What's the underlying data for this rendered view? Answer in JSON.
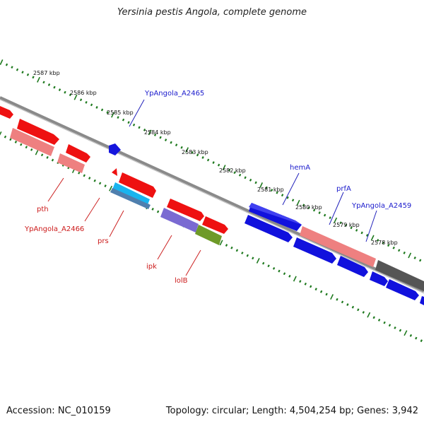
{
  "title": "Yersinia pestis Angola, complete genome",
  "footer": {
    "accession": "Accession: NC_010159",
    "summary": "Topology: circular; Length: 4,504,254 bp; Genes: 3,942"
  },
  "scale_labels": [
    "2587 kbp",
    "2586 kbp",
    "2585 kbp",
    "2584 kbp",
    "2583 kbp",
    "2582 kbp",
    "2581 kbp",
    "2580 kbp",
    "2579 kbp",
    "2578 kbp"
  ],
  "gene_labels_forward": [
    "YpAngola_A2465",
    "hemA",
    "prfA",
    "YpAngola_A2459"
  ],
  "gene_labels_reverse": [
    "pth",
    "YpAngola_A2466",
    "prs",
    "ipk",
    "lolB"
  ],
  "colors": {
    "forward_label": "#1a1acc",
    "reverse_label": "#cc1a1a",
    "backbone": "#7a7a7a",
    "tick_green": "#1f7a1f",
    "red": "#ee1111",
    "pink": "#ee8080",
    "blue": "#1111dd",
    "cyan": "#1ab4ee",
    "steel": "#4f7fae",
    "violet": "#7a6ad2",
    "olive": "#6e9a28",
    "gray": "#555555"
  }
}
